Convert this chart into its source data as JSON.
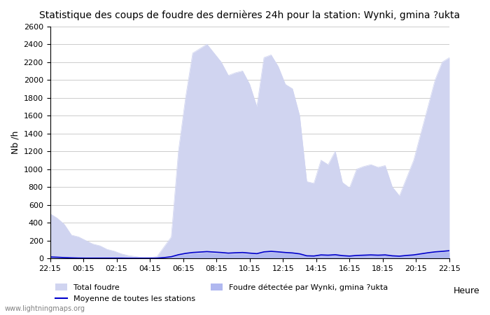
{
  "title": "Statistique des coups de foudre des dernières 24h pour la station: Wynki, gmina ?ukta",
  "xlabel": "Heure",
  "ylabel": "Nb /h",
  "ylim": [
    0,
    2600
  ],
  "yticks": [
    0,
    200,
    400,
    600,
    800,
    1000,
    1200,
    1400,
    1600,
    1800,
    2000,
    2200,
    2400,
    2600
  ],
  "xtick_labels": [
    "22:15",
    "00:15",
    "02:15",
    "04:15",
    "06:15",
    "08:15",
    "10:15",
    "12:15",
    "14:15",
    "16:15",
    "18:15",
    "20:15",
    "22:15"
  ],
  "background_color": "#ffffff",
  "plot_bg_color": "#ffffff",
  "grid_color": "#cccccc",
  "fill_total_color": "#d0d4f0",
  "fill_station_color": "#b0b8f0",
  "line_mean_color": "#0000cc",
  "watermark": "www.lightningmaps.org",
  "legend_total": "Total foudre",
  "legend_station": "Foudre détectée par Wynki, gmina ?ukta",
  "legend_mean": "Moyenne de toutes les stations",
  "total_foudre": [
    500,
    450,
    380,
    260,
    240,
    200,
    160,
    140,
    100,
    80,
    50,
    30,
    20,
    10,
    10,
    20,
    130,
    240,
    1200,
    1800,
    2300,
    2350,
    2400,
    2300,
    2200,
    2050,
    2080,
    2100,
    1950,
    1700,
    2250,
    2280,
    2150,
    1950,
    1900,
    1600,
    860,
    840,
    1100,
    1050,
    1200,
    850,
    790,
    1000,
    1030,
    1050,
    1020,
    1040,
    800,
    700,
    900,
    1100,
    1400,
    1700,
    2000,
    2200,
    2250
  ],
  "station_foudre": [
    10,
    8,
    5,
    3,
    2,
    1,
    1,
    1,
    1,
    1,
    1,
    0,
    0,
    0,
    0,
    0,
    5,
    10,
    30,
    40,
    50,
    55,
    60,
    55,
    50,
    45,
    48,
    50,
    45,
    40,
    60,
    65,
    60,
    55,
    50,
    40,
    20,
    20,
    30,
    28,
    32,
    22,
    20,
    25,
    28,
    30,
    28,
    30,
    20,
    18,
    25,
    30,
    40,
    50,
    60,
    65,
    70
  ],
  "mean_foudre": [
    15,
    12,
    8,
    5,
    3,
    2,
    2,
    2,
    2,
    2,
    2,
    1,
    1,
    1,
    1,
    2,
    8,
    18,
    40,
    55,
    65,
    70,
    75,
    70,
    65,
    58,
    62,
    65,
    58,
    52,
    72,
    78,
    72,
    65,
    60,
    50,
    28,
    26,
    38,
    35,
    40,
    30,
    25,
    32,
    35,
    38,
    35,
    38,
    28,
    24,
    32,
    38,
    50,
    62,
    72,
    78,
    85
  ]
}
